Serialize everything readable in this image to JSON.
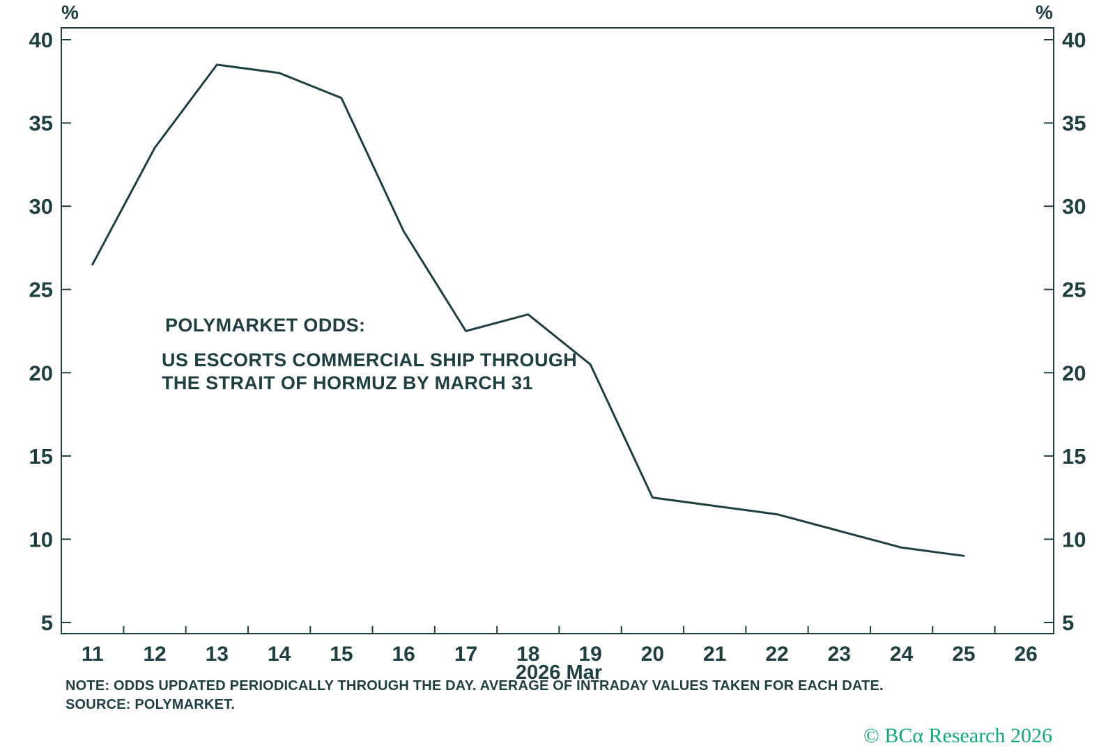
{
  "colors": {
    "ink": "#1d3f42",
    "line": "#1d3f42",
    "logo_green": "#0caa7c",
    "background": "#ffffff"
  },
  "axis_units": {
    "left": "%",
    "right": "%"
  },
  "annotation": {
    "heading": "POLYMARKET ODDS:",
    "line1": "US ESCORTS COMMERCIAL SHIP THROUGH",
    "line2": "THE STRAIT OF HORMUZ BY MARCH 31"
  },
  "footer": {
    "note": "NOTE: ODDS UPDATED PERIODICALLY THROUGH THE DAY. AVERAGE OF INTRADAY VALUES TAKEN FOR EACH DATE.",
    "source": "SOURCE: POLYMARKET.",
    "copyright": "© BCα Research 2026"
  },
  "chart_data": {
    "type": "line",
    "title": "POLYMARKET ODDS: US ESCORTS COMMERCIAL SHIP THROUGH THE STRAIT OF HORMUZ BY MARCH 31",
    "x": [
      11,
      12,
      13,
      14,
      15,
      16,
      17,
      18,
      19,
      20,
      21,
      22,
      23,
      24,
      25
    ],
    "values": [
      26.5,
      33.5,
      38.5,
      38,
      36.5,
      28.5,
      22.5,
      23.5,
      20.5,
      12.5,
      12,
      11.5,
      10.5,
      9.5,
      9
    ],
    "xlabel": "2026 Mar",
    "ylabel": "%",
    "x_tick_labels": [
      "11",
      "12",
      "13",
      "14",
      "15",
      "16",
      "17",
      "18",
      "19",
      "20",
      "21",
      "22",
      "23",
      "24",
      "25",
      "26"
    ],
    "y_ticks": [
      5,
      10,
      15,
      20,
      25,
      30,
      35,
      40
    ],
    "ylim": [
      4.3,
      40.7
    ],
    "xlim": [
      10.5,
      26.5
    ],
    "grid": false,
    "legend": "none"
  }
}
